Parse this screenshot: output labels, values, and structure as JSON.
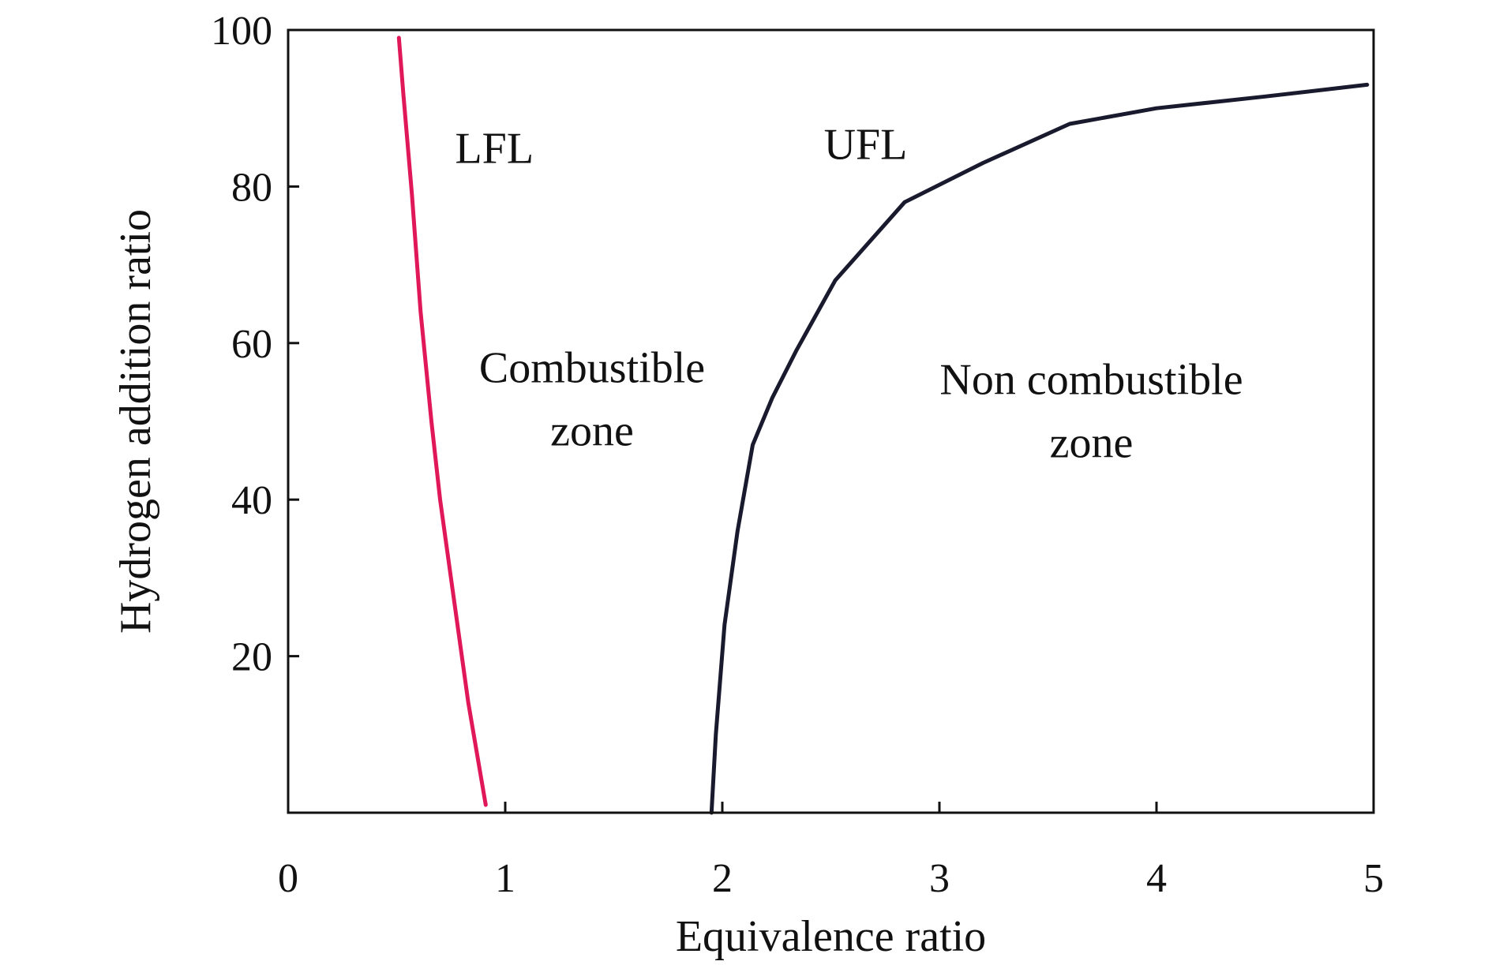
{
  "chart_data": {
    "type": "line",
    "xlabel": "Equivalence ratio",
    "ylabel": "Hydrogen addition ratio",
    "xlim": [
      0,
      5
    ],
    "ylim": [
      0,
      100
    ],
    "xticks": [
      0,
      1,
      2,
      3,
      4,
      5
    ],
    "yticks": [
      20,
      40,
      60,
      80,
      100
    ],
    "x_tick_labels": [
      "0",
      "1",
      "2",
      "3",
      "4",
      "5"
    ],
    "y_tick_labels": [
      "20",
      "40",
      "60",
      "80",
      "100"
    ],
    "grid": false,
    "series": [
      {
        "name": "LFL",
        "color": "#e0185a",
        "x": [
          0.51,
          0.53,
          0.57,
          0.61,
          0.66,
          0.7,
          0.76,
          0.83,
          0.91
        ],
        "y": [
          99,
          92,
          79,
          64,
          50,
          40,
          28,
          14,
          1
        ]
      },
      {
        "name": "UFL",
        "color": "#1a1a2e",
        "x": [
          1.95,
          1.97,
          2.01,
          2.07,
          2.14,
          2.23,
          2.34,
          2.52,
          2.84,
          3.2,
          3.6,
          4.0,
          4.5,
          4.97
        ],
        "y": [
          0,
          10,
          24,
          36,
          47,
          53,
          59,
          68,
          78,
          83,
          88,
          90,
          91.5,
          93
        ]
      }
    ],
    "annotations": [
      {
        "id": "lfl",
        "lines": [
          "LFL"
        ],
        "x": 0.95,
        "y": 83
      },
      {
        "id": "ufl",
        "lines": [
          "UFL"
        ],
        "x": 2.66,
        "y": 83.5
      },
      {
        "id": "combustible",
        "lines": [
          "Combustible",
          "zone"
        ],
        "x": 1.4,
        "y": 55
      },
      {
        "id": "noncombustible",
        "lines": [
          "Non combustible",
          "zone"
        ],
        "x": 3.7,
        "y": 53.5
      }
    ]
  }
}
